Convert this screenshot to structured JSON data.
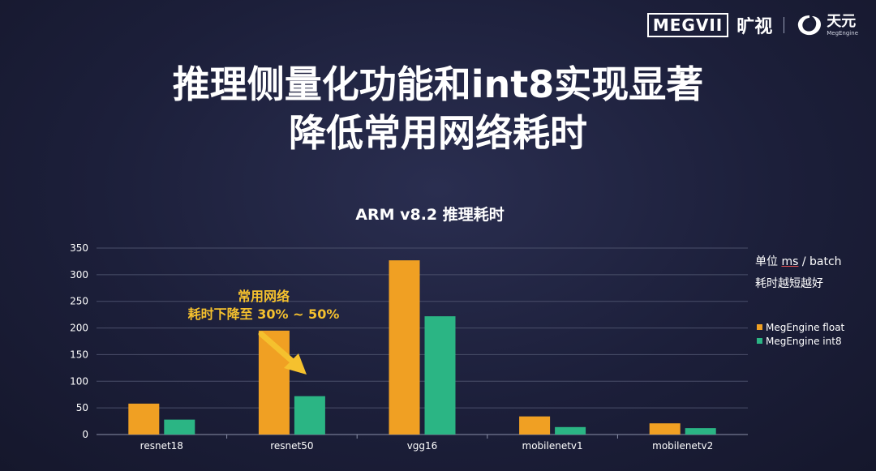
{
  "logo": {
    "megvii": "MEGVII",
    "kuangshi": "旷视",
    "tianyuan": "天元",
    "megengine": "MegEngine"
  },
  "title_line1": "推理侧量化功能和int8实现显著",
  "title_line2": "降低常用网络耗时",
  "unit_prefix": "单位 ",
  "unit_ms": "ms",
  "unit_suffix": " / batch",
  "note": "耗时越短越好",
  "annotation_line1": "常用网络",
  "annotation_line2": "耗时下降至 30% ~ 50%",
  "colors": {
    "float": "#f0a023",
    "int8": "#2bb584",
    "annotation": "#f5c12e",
    "grid": "#4a4f6a"
  },
  "chart_data": {
    "type": "bar",
    "title": "ARM v8.2 推理耗时",
    "categories": [
      "resnet18",
      "resnet50",
      "vgg16",
      "mobilenetv1",
      "mobilenetv2"
    ],
    "series": [
      {
        "name": "MegEngine float",
        "values": [
          58,
          195,
          327,
          34,
          21
        ]
      },
      {
        "name": "MegEngine int8",
        "values": [
          28,
          72,
          222,
          14,
          12
        ]
      }
    ],
    "ylim": [
      0,
      350
    ],
    "yticks": [
      0,
      50,
      100,
      150,
      200,
      250,
      300,
      350
    ],
    "grid": true,
    "legend": "right"
  }
}
